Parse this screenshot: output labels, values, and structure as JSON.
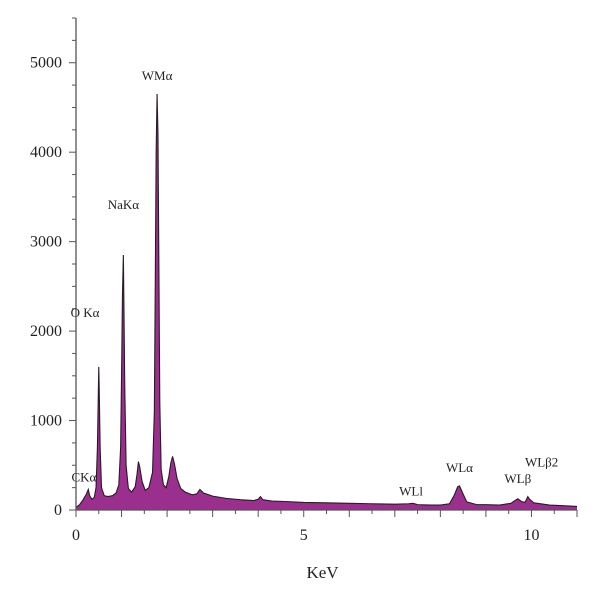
{
  "chart_data": {
    "type": "area",
    "xlabel": "KeV",
    "ylabel": "",
    "xlim": [
      0,
      11
    ],
    "ylim": [
      0,
      5500
    ],
    "x_ticks": [
      0,
      5,
      10
    ],
    "y_ticks": [
      0,
      1000,
      2000,
      3000,
      4000,
      5000
    ],
    "grid": false,
    "legend": "none",
    "colors": {
      "fill": "#9b2f8d",
      "outline": "#2a1a28",
      "axis": "#555555"
    },
    "series": [
      {
        "values": [
          [
            0.0,
            30
          ],
          [
            0.08,
            60
          ],
          [
            0.15,
            110
          ],
          [
            0.22,
            170
          ],
          [
            0.27,
            230
          ],
          [
            0.3,
            160
          ],
          [
            0.35,
            120
          ],
          [
            0.4,
            140
          ],
          [
            0.44,
            250
          ],
          [
            0.47,
            700
          ],
          [
            0.49,
            1300
          ],
          [
            0.5,
            1600
          ],
          [
            0.51,
            1350
          ],
          [
            0.53,
            700
          ],
          [
            0.56,
            250
          ],
          [
            0.62,
            160
          ],
          [
            0.7,
            150
          ],
          [
            0.8,
            160
          ],
          [
            0.88,
            190
          ],
          [
            0.94,
            280
          ],
          [
            0.98,
            700
          ],
          [
            1.0,
            1500
          ],
          [
            1.02,
            2400
          ],
          [
            1.04,
            2850
          ],
          [
            1.05,
            2400
          ],
          [
            1.07,
            1400
          ],
          [
            1.1,
            500
          ],
          [
            1.15,
            240
          ],
          [
            1.22,
            200
          ],
          [
            1.3,
            260
          ],
          [
            1.34,
            400
          ],
          [
            1.37,
            540
          ],
          [
            1.4,
            480
          ],
          [
            1.45,
            320
          ],
          [
            1.52,
            220
          ],
          [
            1.6,
            250
          ],
          [
            1.68,
            420
          ],
          [
            1.72,
            1100
          ],
          [
            1.74,
            2500
          ],
          [
            1.76,
            4000
          ],
          [
            1.78,
            4650
          ],
          [
            1.8,
            4200
          ],
          [
            1.82,
            2700
          ],
          [
            1.84,
            1200
          ],
          [
            1.87,
            450
          ],
          [
            1.92,
            280
          ],
          [
            1.98,
            250
          ],
          [
            2.04,
            380
          ],
          [
            2.08,
            520
          ],
          [
            2.12,
            600
          ],
          [
            2.16,
            520
          ],
          [
            2.22,
            350
          ],
          [
            2.3,
            240
          ],
          [
            2.4,
            200
          ],
          [
            2.55,
            170
          ],
          [
            2.65,
            180
          ],
          [
            2.72,
            230
          ],
          [
            2.8,
            190
          ],
          [
            3.0,
            155
          ],
          [
            3.3,
            130
          ],
          [
            3.6,
            115
          ],
          [
            3.9,
            105
          ],
          [
            4.0,
            120
          ],
          [
            4.05,
            150
          ],
          [
            4.1,
            115
          ],
          [
            4.3,
            100
          ],
          [
            4.6,
            95
          ],
          [
            5.0,
            85
          ],
          [
            5.5,
            80
          ],
          [
            6.0,
            75
          ],
          [
            6.5,
            70
          ],
          [
            7.0,
            65
          ],
          [
            7.3,
            70
          ],
          [
            7.4,
            75
          ],
          [
            7.5,
            60
          ],
          [
            7.8,
            55
          ],
          [
            8.0,
            55
          ],
          [
            8.2,
            70
          ],
          [
            8.3,
            160
          ],
          [
            8.38,
            260
          ],
          [
            8.42,
            270
          ],
          [
            8.48,
            200
          ],
          [
            8.58,
            90
          ],
          [
            8.8,
            60
          ],
          [
            9.0,
            60
          ],
          [
            9.3,
            55
          ],
          [
            9.55,
            75
          ],
          [
            9.65,
            110
          ],
          [
            9.7,
            125
          ],
          [
            9.78,
            95
          ],
          [
            9.86,
            85
          ],
          [
            9.92,
            150
          ],
          [
            9.96,
            120
          ],
          [
            10.05,
            80
          ],
          [
            10.4,
            55
          ],
          [
            10.8,
            45
          ],
          [
            11.0,
            40
          ]
        ]
      }
    ],
    "annotations": [
      {
        "text": "CKα",
        "x": 0.35,
        "y": 230
      },
      {
        "text": "O Kα",
        "x": 0.55,
        "y": 1600
      },
      {
        "text": "NaKα",
        "x": 1.04,
        "y": 2850
      },
      {
        "text": "WMα",
        "x": 1.78,
        "y": 4650
      },
      {
        "text": "WLl",
        "x": 7.4,
        "y": 75
      },
      {
        "text": "WLα",
        "x": 8.42,
        "y": 270
      },
      {
        "text": "WLβ",
        "x": 9.7,
        "y": 125
      },
      {
        "text": "WLβ2",
        "x": 9.96,
        "y": 150
      }
    ]
  }
}
